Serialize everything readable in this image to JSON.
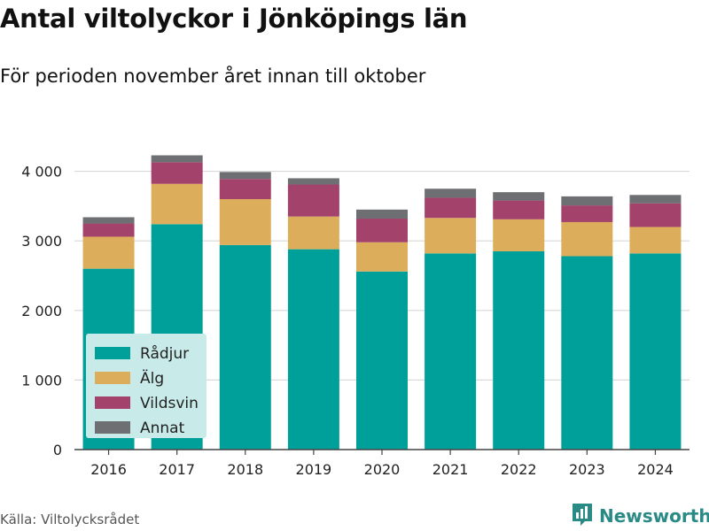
{
  "header": {
    "title": "Antal viltolyckor i Jönköpings län",
    "subtitle": "För perioden november året innan till oktober"
  },
  "footer": {
    "source": "Källa: Viltolycksrådet",
    "brand": "Newsworthy",
    "brand_icon": "newsworthy-logo-icon"
  },
  "chart_data": {
    "type": "bar",
    "stacked": true,
    "categories": [
      "2016",
      "2017",
      "2018",
      "2019",
      "2020",
      "2021",
      "2022",
      "2023",
      "2024"
    ],
    "series": [
      {
        "name": "Rådjur",
        "color": "#00a09a",
        "values": [
          2600,
          3240,
          2940,
          2880,
          2560,
          2820,
          2850,
          2780,
          2820
        ]
      },
      {
        "name": "Älg",
        "color": "#dcae5c",
        "values": [
          460,
          580,
          660,
          470,
          420,
          510,
          460,
          490,
          380
        ]
      },
      {
        "name": "Vildsvin",
        "color": "#a3426b",
        "values": [
          190,
          310,
          290,
          460,
          340,
          290,
          270,
          240,
          340
        ]
      },
      {
        "name": "Annat",
        "color": "#6e6f72",
        "values": [
          90,
          100,
          100,
          90,
          130,
          130,
          120,
          130,
          120
        ]
      }
    ],
    "yticks": [
      0,
      1000,
      2000,
      3000,
      4000
    ],
    "ytick_labels": [
      "0",
      "1 000",
      "2 000",
      "3 000",
      "4 000"
    ],
    "ylim": [
      0,
      4300
    ],
    "grid": true,
    "legend_position": "bottom-left",
    "legend_background": "#c8ebea"
  }
}
